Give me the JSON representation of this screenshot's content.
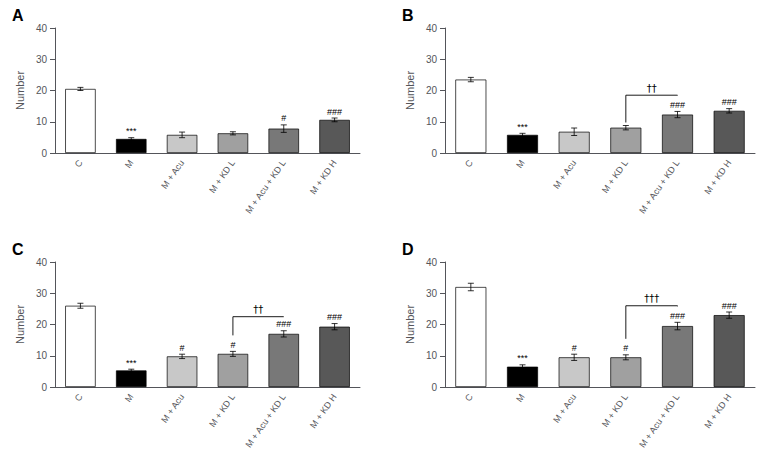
{
  "chart_data": [
    {
      "type": "bar",
      "title": "A",
      "ylabel": "Number",
      "categories": [
        "C",
        "M",
        "M + Acu",
        "M + KD L",
        "M + Acu + KD L",
        "M + KD H"
      ],
      "values": [
        20.5,
        4.5,
        5.8,
        6.3,
        7.8,
        10.6
      ],
      "errors": [
        0.5,
        0.4,
        0.9,
        0.5,
        1.2,
        0.6
      ],
      "colors": [
        "#FFFFFF",
        "#000000",
        "#C8C8C8",
        "#A0A0A0",
        "#787878",
        "#585858"
      ],
      "ylim": [
        0,
        40
      ],
      "yticks": [
        0,
        10,
        20,
        30,
        40
      ],
      "grid": false,
      "annotations": [
        {
          "text": "***",
          "category": "M"
        },
        {
          "text": "#",
          "category": "M + Acu + KD L"
        },
        {
          "text": "###",
          "category": "M + KD H"
        }
      ]
    },
    {
      "type": "bar",
      "title": "B",
      "ylabel": "Number",
      "categories": [
        "C",
        "M",
        "M + Acu",
        "M + KD L",
        "M + Acu + KD L",
        "M + KD H"
      ],
      "values": [
        23.5,
        5.8,
        6.8,
        8.1,
        12.3,
        13.5
      ],
      "errors": [
        0.7,
        0.5,
        1.2,
        0.7,
        1.0,
        0.7
      ],
      "colors": [
        "#FFFFFF",
        "#000000",
        "#C8C8C8",
        "#A0A0A0",
        "#787878",
        "#585858"
      ],
      "ylim": [
        0,
        40
      ],
      "yticks": [
        0,
        10,
        20,
        30,
        40
      ],
      "grid": false,
      "annotations": [
        {
          "text": "***",
          "category": "M"
        },
        {
          "text": "###",
          "category": "M + Acu + KD L"
        },
        {
          "text": "###",
          "category": "M + KD H"
        }
      ],
      "bracket": {
        "categories": [
          "M + KD L",
          "M + Acu + KD L"
        ],
        "y": 18.5,
        "text": "††"
      }
    },
    {
      "type": "bar",
      "title": "C",
      "ylabel": "Number",
      "categories": [
        "C",
        "M",
        "M + Acu",
        "M + KD L",
        "M + Acu + KD L",
        "M + KD H"
      ],
      "values": [
        26.0,
        5.3,
        9.8,
        10.6,
        17.0,
        19.3
      ],
      "errors": [
        0.8,
        0.4,
        0.7,
        0.8,
        1.0,
        1.0
      ],
      "colors": [
        "#FFFFFF",
        "#000000",
        "#C8C8C8",
        "#A0A0A0",
        "#787878",
        "#585858"
      ],
      "ylim": [
        0,
        40
      ],
      "yticks": [
        0,
        10,
        20,
        30,
        40
      ],
      "grid": false,
      "annotations": [
        {
          "text": "***",
          "category": "M"
        },
        {
          "text": "#",
          "category": "M + Acu"
        },
        {
          "text": "#",
          "category": "M + KD L"
        },
        {
          "text": "###",
          "category": "M + Acu + KD L"
        },
        {
          "text": "###",
          "category": "M + KD H"
        }
      ],
      "bracket": {
        "categories": [
          "M + KD L",
          "M + Acu + KD L"
        ],
        "y": 22.5,
        "text": "††"
      }
    },
    {
      "type": "bar",
      "title": "D",
      "ylabel": "Number",
      "categories": [
        "C",
        "M",
        "M + Acu",
        "M + KD L",
        "M + Acu + KD L",
        "M + KD H"
      ],
      "values": [
        32.0,
        6.5,
        9.5,
        9.5,
        19.5,
        23.0
      ],
      "errors": [
        1.2,
        0.6,
        1.0,
        0.8,
        1.2,
        1.0
      ],
      "colors": [
        "#FFFFFF",
        "#000000",
        "#C8C8C8",
        "#A0A0A0",
        "#787878",
        "#585858"
      ],
      "ylim": [
        0,
        40
      ],
      "yticks": [
        0,
        10,
        20,
        30,
        40
      ],
      "grid": false,
      "annotations": [
        {
          "text": "***",
          "category": "M"
        },
        {
          "text": "#",
          "category": "M + Acu"
        },
        {
          "text": "#",
          "category": "M + KD L"
        },
        {
          "text": "###",
          "category": "M + Acu + KD L"
        },
        {
          "text": "###",
          "category": "M + KD H"
        }
      ],
      "bracket": {
        "categories": [
          "M + KD L",
          "M + Acu + KD L"
        ],
        "y": 26.0,
        "text": "†††"
      }
    }
  ]
}
